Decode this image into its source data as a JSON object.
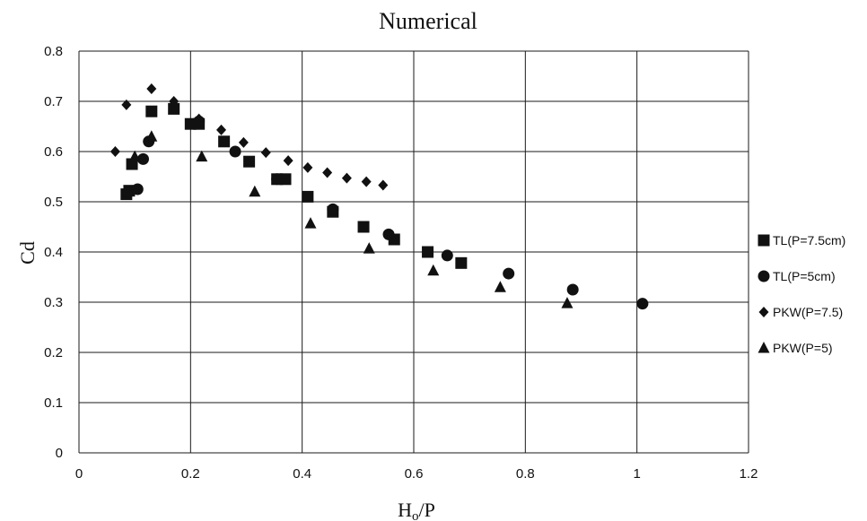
{
  "chart_data": {
    "type": "scatter",
    "title": "Numerical",
    "xlabel": "H",
    "xlabel_sub": "o",
    "xlabel_tail": "/P",
    "ylabel": "Cd",
    "xlim": [
      0,
      1.2
    ],
    "ylim": [
      0,
      0.8
    ],
    "x_ticks": [
      "0",
      "0.2",
      "0.4",
      "0.6",
      "0.8",
      "1",
      "1.2"
    ],
    "y_ticks": [
      "0",
      "0.1",
      "0.2",
      "0.3",
      "0.4",
      "0.5",
      "0.6",
      "0.7",
      "0.8"
    ],
    "grid": true,
    "legend_position": "right",
    "series": [
      {
        "name": "TL(P=7.5cm)",
        "marker": "square",
        "color": "#111111",
        "points": [
          [
            0.085,
            0.515
          ],
          [
            0.09,
            0.522
          ],
          [
            0.095,
            0.575
          ],
          [
            0.13,
            0.68
          ],
          [
            0.17,
            0.685
          ],
          [
            0.2,
            0.655
          ],
          [
            0.215,
            0.655
          ],
          [
            0.26,
            0.62
          ],
          [
            0.305,
            0.58
          ],
          [
            0.355,
            0.545
          ],
          [
            0.37,
            0.545
          ],
          [
            0.41,
            0.51
          ],
          [
            0.455,
            0.48
          ],
          [
            0.51,
            0.45
          ],
          [
            0.565,
            0.425
          ],
          [
            0.625,
            0.4
          ],
          [
            0.685,
            0.378
          ]
        ]
      },
      {
        "name": "TL(P=5cm)",
        "marker": "circle",
        "color": "#111111",
        "points": [
          [
            0.105,
            0.525
          ],
          [
            0.115,
            0.585
          ],
          [
            0.125,
            0.62
          ],
          [
            0.215,
            0.66
          ],
          [
            0.28,
            0.6
          ],
          [
            0.355,
            0.545
          ],
          [
            0.455,
            0.485
          ],
          [
            0.555,
            0.435
          ],
          [
            0.66,
            0.393
          ],
          [
            0.77,
            0.357
          ],
          [
            0.885,
            0.325
          ],
          [
            1.01,
            0.297
          ]
        ]
      },
      {
        "name": "PKW(P=7.5)",
        "marker": "diamond",
        "color": "#111111",
        "points": [
          [
            0.065,
            0.6
          ],
          [
            0.085,
            0.693
          ],
          [
            0.13,
            0.725
          ],
          [
            0.17,
            0.7
          ],
          [
            0.215,
            0.665
          ],
          [
            0.255,
            0.643
          ],
          [
            0.295,
            0.618
          ],
          [
            0.335,
            0.598
          ],
          [
            0.375,
            0.582
          ],
          [
            0.41,
            0.568
          ],
          [
            0.445,
            0.558
          ],
          [
            0.48,
            0.547
          ],
          [
            0.515,
            0.54
          ],
          [
            0.545,
            0.533
          ]
        ]
      },
      {
        "name": "PKW(P=5)",
        "marker": "triangle",
        "color": "#111111",
        "points": [
          [
            0.1,
            0.59
          ],
          [
            0.13,
            0.63
          ],
          [
            0.22,
            0.59
          ],
          [
            0.315,
            0.52
          ],
          [
            0.415,
            0.457
          ],
          [
            0.52,
            0.407
          ],
          [
            0.635,
            0.363
          ],
          [
            0.755,
            0.33
          ],
          [
            0.875,
            0.298
          ]
        ]
      }
    ]
  }
}
